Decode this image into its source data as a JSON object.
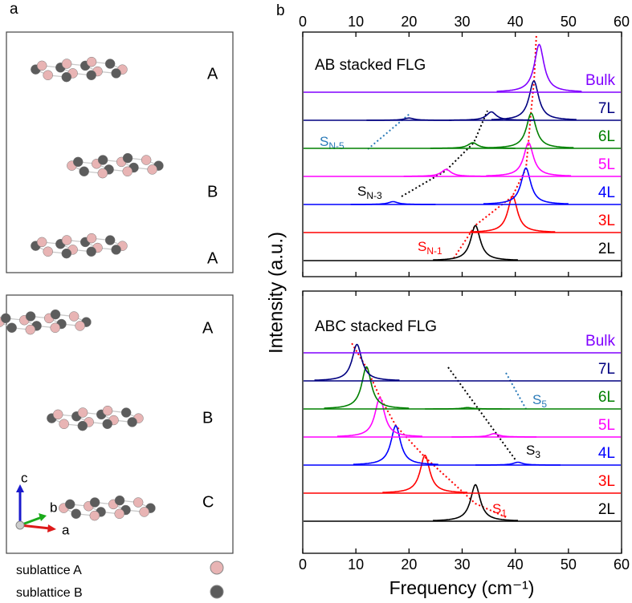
{
  "lattice": {
    "panel_label": "a",
    "layers_ab": [
      "A",
      "B",
      "A"
    ],
    "layers_abc": [
      "A",
      "B",
      "C"
    ],
    "axes": [
      "c",
      "b",
      "a"
    ],
    "legend": [
      {
        "label": "sublattice A",
        "color": "#e8b4b4"
      },
      {
        "label": "sublattice B",
        "color": "#5c5c5c"
      }
    ]
  },
  "chart_data": [
    {
      "type": "line",
      "panel_label": "b",
      "title": "AB stacked FLG",
      "ylabel": "Intensity (a.u.)",
      "xlim": [
        0,
        60
      ],
      "xticks": [
        0,
        10,
        20,
        30,
        40,
        50,
        60
      ],
      "series": [
        {
          "name": "2L",
          "color": "#000000",
          "x": [
            32.5
          ],
          "values": [
            1.25
          ]
        },
        {
          "name": "3L",
          "color": "#ff0000",
          "x": [
            39.5
          ],
          "values": [
            1.3
          ]
        },
        {
          "name": "4L",
          "color": "#0000ff",
          "x": [
            17,
            42
          ],
          "values": [
            0.1,
            1.3
          ]
        },
        {
          "name": "5L",
          "color": "#ff00ff",
          "x": [
            27,
            42.5
          ],
          "values": [
            0.25,
            1.2
          ]
        },
        {
          "name": "6L",
          "color": "#008000",
          "x": [
            32,
            43
          ],
          "values": [
            0.2,
            1.25
          ]
        },
        {
          "name": "7L",
          "color": "#000080",
          "x": [
            20,
            35.5,
            43.5
          ],
          "values": [
            0.08,
            0.3,
            1.4
          ]
        },
        {
          "name": "Bulk",
          "color": "#8000ff",
          "x": [
            44.5
          ],
          "values": [
            1.7
          ]
        }
      ],
      "annotations": [
        {
          "text": "S",
          "sub": "N-5",
          "color": "#2a7ab8"
        },
        {
          "text": "S",
          "sub": "N-3",
          "color": "#000000"
        },
        {
          "text": "S",
          "sub": "N-1",
          "color": "#ff0000"
        }
      ]
    },
    {
      "type": "line",
      "title": "ABC stacked FLG",
      "xlabel": "Frequency (cm⁻¹)",
      "xlim": [
        0,
        60
      ],
      "xticks": [
        0,
        10,
        20,
        30,
        40,
        50,
        60
      ],
      "series": [
        {
          "name": "2L",
          "color": "#000000",
          "x": [
            32.5
          ],
          "values": [
            1.3
          ]
        },
        {
          "name": "3L",
          "color": "#ff0000",
          "x": [
            23
          ],
          "values": [
            1.35
          ]
        },
        {
          "name": "4L",
          "color": "#0000ff",
          "x": [
            17.5,
            40.5
          ],
          "values": [
            1.4,
            0.1
          ]
        },
        {
          "name": "5L",
          "color": "#ff00ff",
          "x": [
            14.5,
            36
          ],
          "values": [
            1.4,
            0.12
          ]
        },
        {
          "name": "6L",
          "color": "#008000",
          "x": [
            12,
            31
          ],
          "values": [
            1.5,
            0.05
          ]
        },
        {
          "name": "7L",
          "color": "#000080",
          "x": [
            10.2
          ],
          "values": [
            1.3
          ]
        },
        {
          "name": "Bulk",
          "color": "#8000ff",
          "x": [],
          "values": []
        }
      ],
      "annotations": [
        {
          "text": "S",
          "sub": "5",
          "color": "#2a7ab8"
        },
        {
          "text": "S",
          "sub": "3",
          "color": "#000000"
        },
        {
          "text": "S",
          "sub": "1",
          "color": "#ff0000"
        }
      ]
    }
  ]
}
